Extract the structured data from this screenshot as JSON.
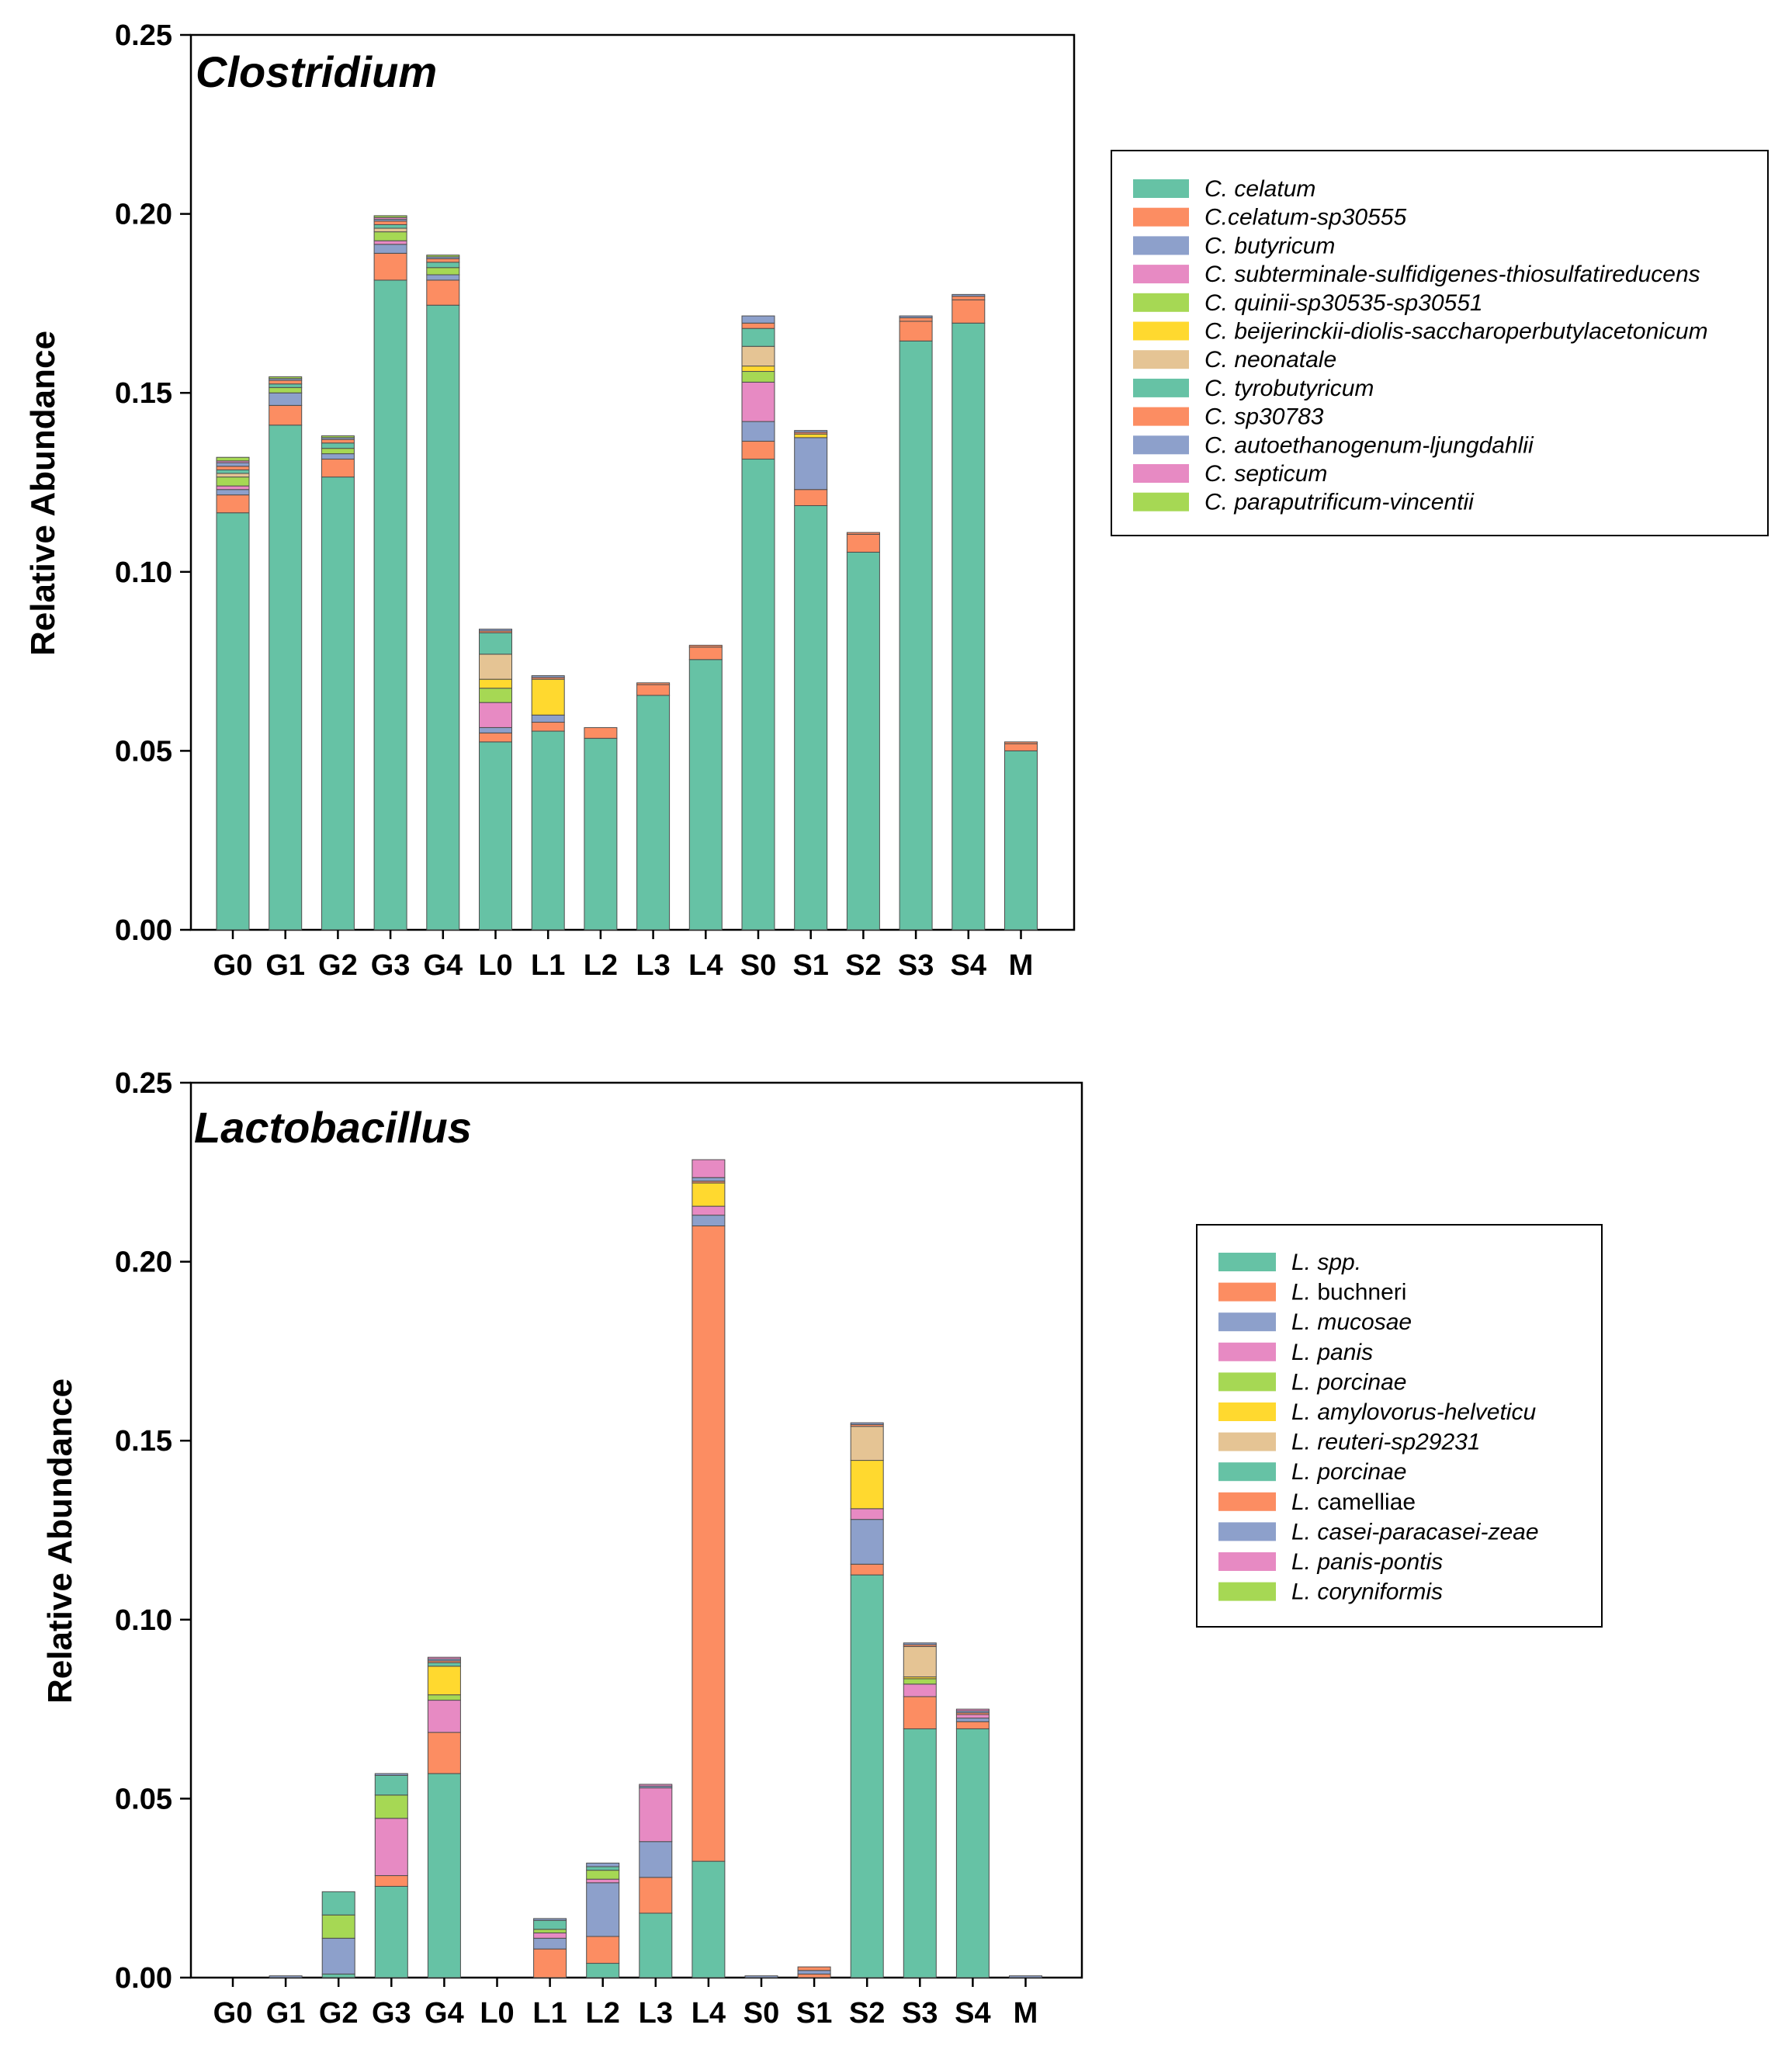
{
  "colors": {
    "teal": "#66c2a5",
    "orange": "#fc8d62",
    "blue": "#8da0cb",
    "pink": "#e78ac3",
    "green": "#a6d854",
    "yellow": "#ffd92f",
    "tan": "#e5c494"
  },
  "chart_data": [
    {
      "type": "bar",
      "stacked": true,
      "title": "Clostridium",
      "xlabel": "",
      "ylabel": "Relative Abundance",
      "ylim": [
        0,
        0.25
      ],
      "yticks": [
        "0.00",
        "0.05",
        "0.10",
        "0.15",
        "0.20",
        "0.25"
      ],
      "categories": [
        "G0",
        "G1",
        "G2",
        "G3",
        "G4",
        "L0",
        "L1",
        "L2",
        "L3",
        "L4",
        "S0",
        "S1",
        "S2",
        "S3",
        "S4",
        "M"
      ],
      "legend_position": "right",
      "series": [
        {
          "name": "C. celatum",
          "color": "#66c2a5",
          "values": [
            0.1165,
            0.141,
            0.1265,
            0.1815,
            0.1745,
            0.0525,
            0.0555,
            0.0535,
            0.0655,
            0.0755,
            0.1315,
            0.1185,
            0.1055,
            0.1645,
            0.1695,
            0.05
          ]
        },
        {
          "name": "C.celatum-sp30555",
          "color": "#fc8d62",
          "values": [
            0.005,
            0.0055,
            0.005,
            0.0075,
            0.007,
            0.0025,
            0.0025,
            0.003,
            0.003,
            0.0035,
            0.005,
            0.0045,
            0.005,
            0.0055,
            0.0065,
            0.002
          ]
        },
        {
          "name": "C. butyricum",
          "color": "#8da0cb",
          "values": [
            0.0015,
            0.0035,
            0.0015,
            0.0025,
            0.0015,
            0.0015,
            0.002,
            0.0,
            0.0,
            0.0,
            0.0055,
            0.0145,
            0.0,
            0.0,
            0.0,
            0.0
          ]
        },
        {
          "name": "C. subterminale-sulfidigenes-thiosulfatireducens",
          "color": "#e78ac3",
          "values": [
            0.001,
            0.0,
            0.0,
            0.001,
            0.0,
            0.007,
            0.0,
            0.0,
            0.0,
            0.0,
            0.011,
            0.0,
            0.0,
            0.0,
            0.0,
            0.0
          ]
        },
        {
          "name": "C. quinii-sp30535-sp30551",
          "color": "#a6d854",
          "values": [
            0.0025,
            0.0015,
            0.0015,
            0.0025,
            0.002,
            0.004,
            0.0,
            0.0,
            0.0,
            0.0,
            0.003,
            0.0,
            0.0,
            0.0,
            0.0,
            0.0
          ]
        },
        {
          "name": "C. beijerinckii-diolis-saccharoperbutylacetonicum",
          "color": "#ffd92f",
          "values": [
            0.0,
            0.0,
            0.0,
            0.0,
            0.0,
            0.0025,
            0.01,
            0.0,
            0.0,
            0.0,
            0.0015,
            0.001,
            0.0,
            0.0,
            0.0,
            0.0
          ]
        },
        {
          "name": "C. neonatale",
          "color": "#e5c494",
          "values": [
            0.001,
            0.0,
            0.0,
            0.001,
            0.0,
            0.007,
            0.0,
            0.0,
            0.0,
            0.0,
            0.0055,
            0.0,
            0.0,
            0.0,
            0.0,
            0.0
          ]
        },
        {
          "name": "C. tyrobutyricum",
          "color": "#66c2a5",
          "values": [
            0.001,
            0.001,
            0.0015,
            0.001,
            0.0015,
            0.006,
            0.0,
            0.0,
            0.0,
            0.0,
            0.005,
            0.0,
            0.0,
            0.0,
            0.0,
            0.0
          ]
        },
        {
          "name": "C. sp30783",
          "color": "#fc8d62",
          "values": [
            0.001,
            0.001,
            0.001,
            0.001,
            0.001,
            0.0005,
            0.0005,
            0.0,
            0.0005,
            0.0005,
            0.0015,
            0.0005,
            0.0005,
            0.001,
            0.001,
            0.0005
          ]
        },
        {
          "name": "C. autoethanogenum-ljungdahlii",
          "color": "#8da0cb",
          "values": [
            0.001,
            0.0005,
            0.0005,
            0.0005,
            0.0005,
            0.0005,
            0.0005,
            0.0,
            0.0,
            0.0,
            0.002,
            0.0005,
            0.0,
            0.0005,
            0.0005,
            0.0
          ]
        },
        {
          "name": "C. septicum",
          "color": "#e78ac3",
          "values": [
            0.0005,
            0.0,
            0.0,
            0.0005,
            0.0,
            0.0,
            0.0,
            0.0,
            0.0,
            0.0,
            0.0,
            0.0,
            0.0,
            0.0,
            0.0,
            0.0
          ]
        },
        {
          "name": "C. paraputrificum-vincentii",
          "color": "#a6d854",
          "values": [
            0.001,
            0.0005,
            0.0005,
            0.0005,
            0.0005,
            0.0,
            0.0,
            0.0,
            0.0,
            0.0,
            0.0,
            0.0,
            0.0,
            0.0,
            0.0,
            0.0
          ]
        }
      ]
    },
    {
      "type": "bar",
      "stacked": true,
      "title": "Lactobacillus",
      "xlabel": "",
      "ylabel": "Relative Abundance",
      "ylim": [
        0,
        0.25
      ],
      "yticks": [
        "0.00",
        "0.05",
        "0.10",
        "0.15",
        "0.20",
        "0.25"
      ],
      "categories": [
        "G0",
        "G1",
        "G2",
        "G3",
        "G4",
        "L0",
        "L1",
        "L2",
        "L3",
        "L4",
        "S0",
        "S1",
        "S2",
        "S3",
        "S4",
        "M"
      ],
      "legend_position": "right",
      "series": [
        {
          "name": "L. spp.",
          "italic_prefix": "L.",
          "rest": "spp.",
          "rest_italic": true,
          "color": "#66c2a5",
          "values": [
            0.0,
            0.0,
            0.001,
            0.0255,
            0.057,
            0.0,
            0.0,
            0.004,
            0.018,
            0.0325,
            0.0,
            0.0,
            0.1125,
            0.0695,
            0.0695,
            0.0
          ]
        },
        {
          "name": "L. buchneri",
          "italic_prefix": "L.",
          "rest": "buchneri",
          "rest_italic": false,
          "color": "#fc8d62",
          "values": [
            0.0,
            0.0,
            0.0,
            0.003,
            0.0115,
            0.0,
            0.008,
            0.0075,
            0.01,
            0.1775,
            0.0,
            0.001,
            0.003,
            0.009,
            0.002,
            0.0
          ]
        },
        {
          "name": "L. mucosae",
          "italic_prefix": "L.",
          "rest": "mucosae",
          "rest_italic": true,
          "color": "#8da0cb",
          "values": [
            0.0,
            0.0,
            0.01,
            0.0,
            0.0,
            0.0,
            0.003,
            0.015,
            0.01,
            0.003,
            0.0,
            0.001,
            0.0125,
            0.0,
            0.001,
            0.0
          ]
        },
        {
          "name": "L. panis",
          "italic_prefix": "L.",
          "rest": "panis",
          "rest_italic": true,
          "color": "#e78ac3",
          "values": [
            0.0,
            0.0,
            0.0,
            0.016,
            0.009,
            0.0,
            0.0015,
            0.001,
            0.015,
            0.0025,
            0.0,
            0.0,
            0.003,
            0.0035,
            0.001,
            0.0
          ]
        },
        {
          "name": "L. porcinae",
          "italic_prefix": "L.",
          "rest": "porcinae",
          "rest_italic": true,
          "color": "#a6d854",
          "values": [
            0.0,
            0.0,
            0.0065,
            0.0065,
            0.0015,
            0.0,
            0.001,
            0.0025,
            0.0,
            0.0,
            0.0,
            0.0,
            0.0,
            0.0015,
            0.0,
            0.0
          ]
        },
        {
          "name": "L. amylovorus-helveticu",
          "italic_prefix": "L.",
          "rest": "amylovorus-helveticu",
          "rest_italic": true,
          "color": "#ffd92f",
          "values": [
            0.0,
            0.0,
            0.0,
            0.0,
            0.008,
            0.0,
            0.0,
            0.0,
            0.0,
            0.0065,
            0.0,
            0.0,
            0.0135,
            0.0005,
            0.0,
            0.0
          ]
        },
        {
          "name": "L. reuteri-sp29231",
          "italic_prefix": "L.",
          "rest": "reuteri-sp29231",
          "rest_italic": true,
          "color": "#e5c494",
          "values": [
            0.0,
            0.0,
            0.0,
            0.0,
            0.0,
            0.0,
            0.0,
            0.0,
            0.0,
            0.0,
            0.0,
            0.0,
            0.0095,
            0.0085,
            0.0,
            0.0
          ]
        },
        {
          "name": "L. porcinae",
          "italic_prefix": "L.",
          "rest": "porcinae",
          "rest_italic": true,
          "color": "#66c2a5",
          "values": [
            0.0,
            0.0,
            0.0065,
            0.0055,
            0.001,
            0.0,
            0.0025,
            0.001,
            0.0,
            0.0,
            0.0,
            0.0,
            0.0,
            0.0,
            0.0,
            0.0
          ]
        },
        {
          "name": "L. camelliae",
          "italic_prefix": "L.",
          "rest": "camelliae",
          "rest_italic": false,
          "color": "#fc8d62",
          "values": [
            0.0,
            0.0,
            0.0,
            0.0,
            0.0005,
            0.0,
            0.0,
            0.0,
            0.0,
            0.0005,
            0.0,
            0.001,
            0.0005,
            0.0005,
            0.0005,
            0.0
          ]
        },
        {
          "name": "L. casei-paracasei-zeae",
          "italic_prefix": "L.",
          "rest": "casei-paracasei-zeae",
          "rest_italic": true,
          "color": "#8da0cb",
          "values": [
            0.0,
            0.0005,
            0.0,
            0.0005,
            0.0005,
            0.0,
            0.0005,
            0.001,
            0.0005,
            0.001,
            0.0005,
            0.0,
            0.0005,
            0.0005,
            0.0005,
            0.0005
          ]
        },
        {
          "name": "L. panis-pontis",
          "italic_prefix": "L.",
          "rest": "panis-pontis",
          "rest_italic": true,
          "color": "#e78ac3",
          "values": [
            0.0,
            0.0,
            0.0,
            0.0,
            0.0005,
            0.0,
            0.0,
            0.0,
            0.0005,
            0.005,
            0.0,
            0.0,
            0.0,
            0.0,
            0.0005,
            0.0
          ]
        },
        {
          "name": "L. coryniformis",
          "italic_prefix": "L.",
          "rest": "coryniformis",
          "rest_italic": true,
          "color": "#a6d854",
          "values": [
            0.0,
            0.0,
            0.0,
            0.0,
            0.0,
            0.0,
            0.0,
            0.0,
            0.0,
            0.0,
            0.0,
            0.0,
            0.0,
            0.0,
            0.0,
            0.0
          ]
        }
      ]
    }
  ]
}
